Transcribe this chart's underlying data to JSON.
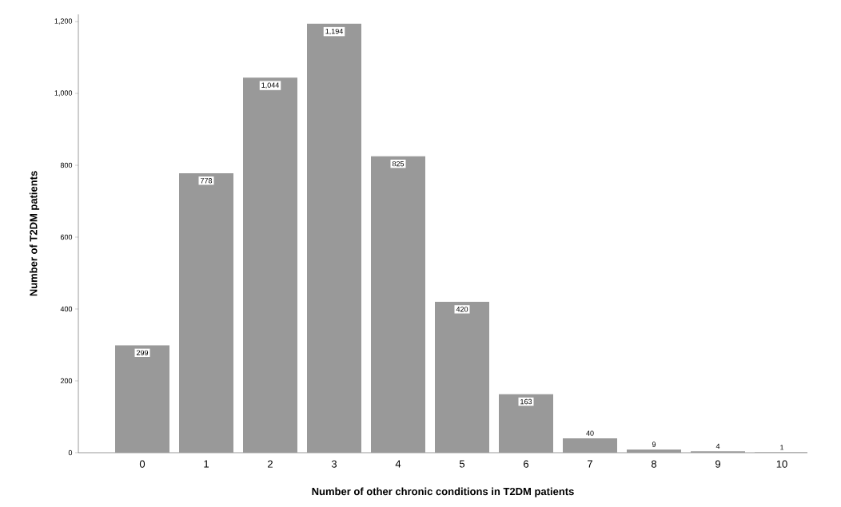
{
  "chart_data": {
    "type": "bar",
    "xlabel": "Number of other chronic conditions in T2DM patients",
    "ylabel": "Number of T2DM patients",
    "categories": [
      "0",
      "1",
      "2",
      "3",
      "4",
      "5",
      "6",
      "7",
      "8",
      "9",
      "10"
    ],
    "values": [
      299,
      778,
      1044,
      1194,
      825,
      420,
      163,
      40,
      9,
      4,
      1
    ],
    "value_labels": [
      "299",
      "778",
      "1,044",
      "1,194",
      "825",
      "420",
      "163",
      "40",
      "9",
      "4",
      "1"
    ],
    "color": "#999999",
    "ylim": [
      0,
      1220
    ],
    "yticks": [
      0,
      200,
      400,
      600,
      800,
      {
        "value": 1000,
        "label": "1,000"
      },
      {
        "value": 1200,
        "label": "1,200"
      }
    ],
    "grid": false
  }
}
